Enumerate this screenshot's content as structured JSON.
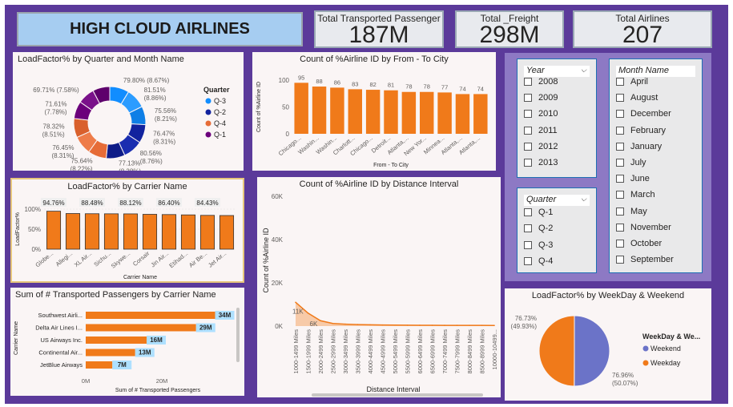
{
  "banner_title": "HIGH CLOUD AIRLINES",
  "kpis": [
    {
      "label": "Total Transported Passenger",
      "value": "187M"
    },
    {
      "label": "Total _Freight",
      "value": "298M"
    },
    {
      "label": "Total Airlines",
      "value": "207"
    }
  ],
  "slicers": {
    "year": {
      "title": "Year",
      "items": [
        "2008",
        "2009",
        "2010",
        "2011",
        "2012",
        "2013"
      ]
    },
    "month": {
      "title": "Month Name",
      "items": [
        "April",
        "August",
        "December",
        "February",
        "January",
        "July",
        "June",
        "March",
        "May",
        "November",
        "October",
        "September"
      ]
    },
    "quarter": {
      "title": "Quarter",
      "items": [
        "Q-1",
        "Q-2",
        "Q-3",
        "Q-4"
      ]
    }
  },
  "chart_data": [
    {
      "id": "donut",
      "type": "pie",
      "title": "LoadFactor% by Quarter and Month Name",
      "legend_title": "Quarter",
      "legend_position": "right",
      "legend": [
        {
          "name": "Q-3",
          "color": "#118dff"
        },
        {
          "name": "Q-2",
          "color": "#12239e"
        },
        {
          "name": "Q-4",
          "color": "#e66c37"
        },
        {
          "name": "Q-1",
          "color": "#6b007b"
        }
      ],
      "slices": [
        {
          "quarter": "Q-3",
          "value": 79.8,
          "pct": "8.67%",
          "color": "#118dff"
        },
        {
          "quarter": "Q-3",
          "value": 81.51,
          "pct": "8.86%",
          "color": "#2b9cff"
        },
        {
          "quarter": "Q-3",
          "value": 75.56,
          "pct": "8.21%",
          "color": "#0f7fe6"
        },
        {
          "quarter": "Q-2",
          "value": 76.47,
          "pct": "8.31%",
          "color": "#12239e"
        },
        {
          "quarter": "Q-2",
          "value": 80.56,
          "pct": "8.76%",
          "color": "#1a2db0"
        },
        {
          "quarter": "Q-2",
          "value": 77.13,
          "pct": "8.38%",
          "color": "#0e1c88"
        },
        {
          "quarter": "Q-4",
          "value": 75.64,
          "pct": "8.22%",
          "color": "#e66c37"
        },
        {
          "quarter": "Q-4",
          "value": 76.45,
          "pct": "8.31%",
          "color": "#ee7c49"
        },
        {
          "quarter": "Q-4",
          "value": 78.32,
          "pct": "8.51%",
          "color": "#d9602c"
        },
        {
          "quarter": "Q-1",
          "value": 71.61,
          "pct": "7.78%",
          "color": "#6b007b"
        },
        {
          "quarter": "Q-1",
          "value": 69.71,
          "pct": "7.58%",
          "color": "#7a118a"
        },
        {
          "quarter": "Q-1",
          "value": 70.2,
          "pct": "",
          "color": "#5e006c"
        }
      ],
      "labels": [
        {
          "text": "79.80% (8.67%)",
          "idx": 0
        },
        {
          "text": "81.51% (8.86%)",
          "idx": 1
        },
        {
          "text": "75.56% (8.21%)",
          "idx": 2
        },
        {
          "text": "76.47% (8.31%)",
          "idx": 3
        },
        {
          "text": "80.56% (8.76%)",
          "idx": 4
        },
        {
          "text": "77.13% (8.38%)",
          "idx": 5
        },
        {
          "text": "75.64% (8.22%)",
          "idx": 6
        },
        {
          "text": "76.45% (8.31%)",
          "idx": 7
        },
        {
          "text": "78.32% (8.51%)",
          "idx": 8
        },
        {
          "text": "71.61% (7.78%)",
          "idx": 9
        },
        {
          "text": "69.71% (7.58%)",
          "idx": 10
        }
      ]
    },
    {
      "id": "city",
      "type": "bar",
      "title": "Count of %Airline ID by From - To City",
      "xlabel": "From - To City",
      "ylabel": "Count of %Airline ID",
      "ylim": [
        0,
        100
      ],
      "yticks": [
        0,
        50,
        100
      ],
      "categories": [
        "Chicago...",
        "Washin...",
        "Washin...",
        "Charlott...",
        "Chicago...",
        "Detroit...",
        "Atlanta,...",
        "New Yor...",
        "Minnea...",
        "Atlanta,...",
        "Atlanta,..."
      ],
      "values": [
        95,
        88,
        86,
        83,
        82,
        81,
        78,
        78,
        77,
        74,
        74
      ],
      "color": "#f07a1a"
    },
    {
      "id": "carrier",
      "type": "bar",
      "title": "LoadFactor% by Carrier Name",
      "xlabel": "Carrier Name",
      "ylabel": "LoadFactor%",
      "ylim": [
        0,
        100
      ],
      "yticks": [
        "0%",
        "50%",
        "100%"
      ],
      "categories": [
        "Globe...",
        "Allegi...",
        "XL Air...",
        "Sichu...",
        "Skywe...",
        "Corsair",
        "Jin Air...",
        "Etihad...",
        "Air Be...",
        "Jet Air..."
      ],
      "values": [
        94.76,
        89.0,
        88.48,
        88.3,
        88.12,
        87.0,
        86.4,
        85.6,
        84.43,
        84.0
      ],
      "data_labels": [
        {
          "idx": 0,
          "text": "94.76%"
        },
        {
          "idx": 2,
          "text": "88.48%"
        },
        {
          "idx": 4,
          "text": "88.12%"
        },
        {
          "idx": 6,
          "text": "86.40%"
        },
        {
          "idx": 8,
          "text": "84.43%"
        }
      ],
      "color": "#f07a1a"
    },
    {
      "id": "distance",
      "type": "area",
      "title": "Count of %Airline ID by Distance Interval",
      "xlabel": "Distance Interval",
      "ylabel": "Count of %Airline ID",
      "ylim": [
        0,
        60000
      ],
      "yticks": [
        "0K",
        "20K",
        "40K",
        "60K"
      ],
      "categories": [
        "1000-1499 Miles",
        "1500-1999 Miles",
        "2000-2499 Miles",
        "2500-2999 Miles",
        "3000-3499 Miles",
        "3500-3999 Miles",
        "4000-4499 Miles",
        "4500-4999 Miles",
        "5000-5499 Miles",
        "5500-5999 Miles",
        "6000-6499 Miles",
        "6500-6999 Miles",
        "7000-7499 Miles",
        "7500-7999 Miles",
        "8000-8499 Miles",
        "8500-8999 Miles",
        "10000-10499..."
      ],
      "values": [
        11000,
        6000,
        2500,
        1200,
        900,
        700,
        600,
        500,
        450,
        400,
        380,
        360,
        340,
        330,
        320,
        310,
        300
      ],
      "data_labels": [
        {
          "idx": 0,
          "text": "11K"
        },
        {
          "idx": 1,
          "text": "6K"
        }
      ],
      "color": "#f07a1a"
    },
    {
      "id": "passengers",
      "type": "bar",
      "orientation": "horizontal",
      "title": "Sum of # Transported Passengers by Carrier Name",
      "xlabel": "Sum of # Transported Passengers",
      "ylabel": "Carrier Name",
      "xlim": [
        0,
        40
      ],
      "xticks": [
        "0M",
        "20M"
      ],
      "categories": [
        "Southwest Airli...",
        "Delta Air Lines I...",
        "US Airways Inc.",
        "Continental Air...",
        "JetBlue Airways"
      ],
      "values": [
        34,
        29,
        16,
        13,
        7
      ],
      "data_labels": [
        "34M",
        "29M",
        "16M",
        "13M",
        "7M"
      ],
      "color": "#f07a1a"
    },
    {
      "id": "weekday",
      "type": "pie",
      "title": "LoadFactor% by WeekDay & Weekend",
      "legend_title": "WeekDay & We...",
      "legend_position": "right",
      "slices": [
        {
          "name": "Weekend",
          "value": 76.96,
          "pct": "50.07%",
          "color": "#6b73c8"
        },
        {
          "name": "Weekday",
          "value": 76.73,
          "pct": "49.93%",
          "color": "#f07a1a"
        }
      ],
      "labels": [
        {
          "text": "76.73%",
          "idx": 1
        },
        {
          "text": "(49.93%)",
          "idx": 1
        },
        {
          "text": "76.96%",
          "idx": 0
        },
        {
          "text": "(50.07%)",
          "idx": 0
        }
      ],
      "legend": [
        {
          "name": "Weekend",
          "color": "#6b73c8"
        },
        {
          "name": "Weekday",
          "color": "#f07a1a"
        }
      ]
    }
  ]
}
